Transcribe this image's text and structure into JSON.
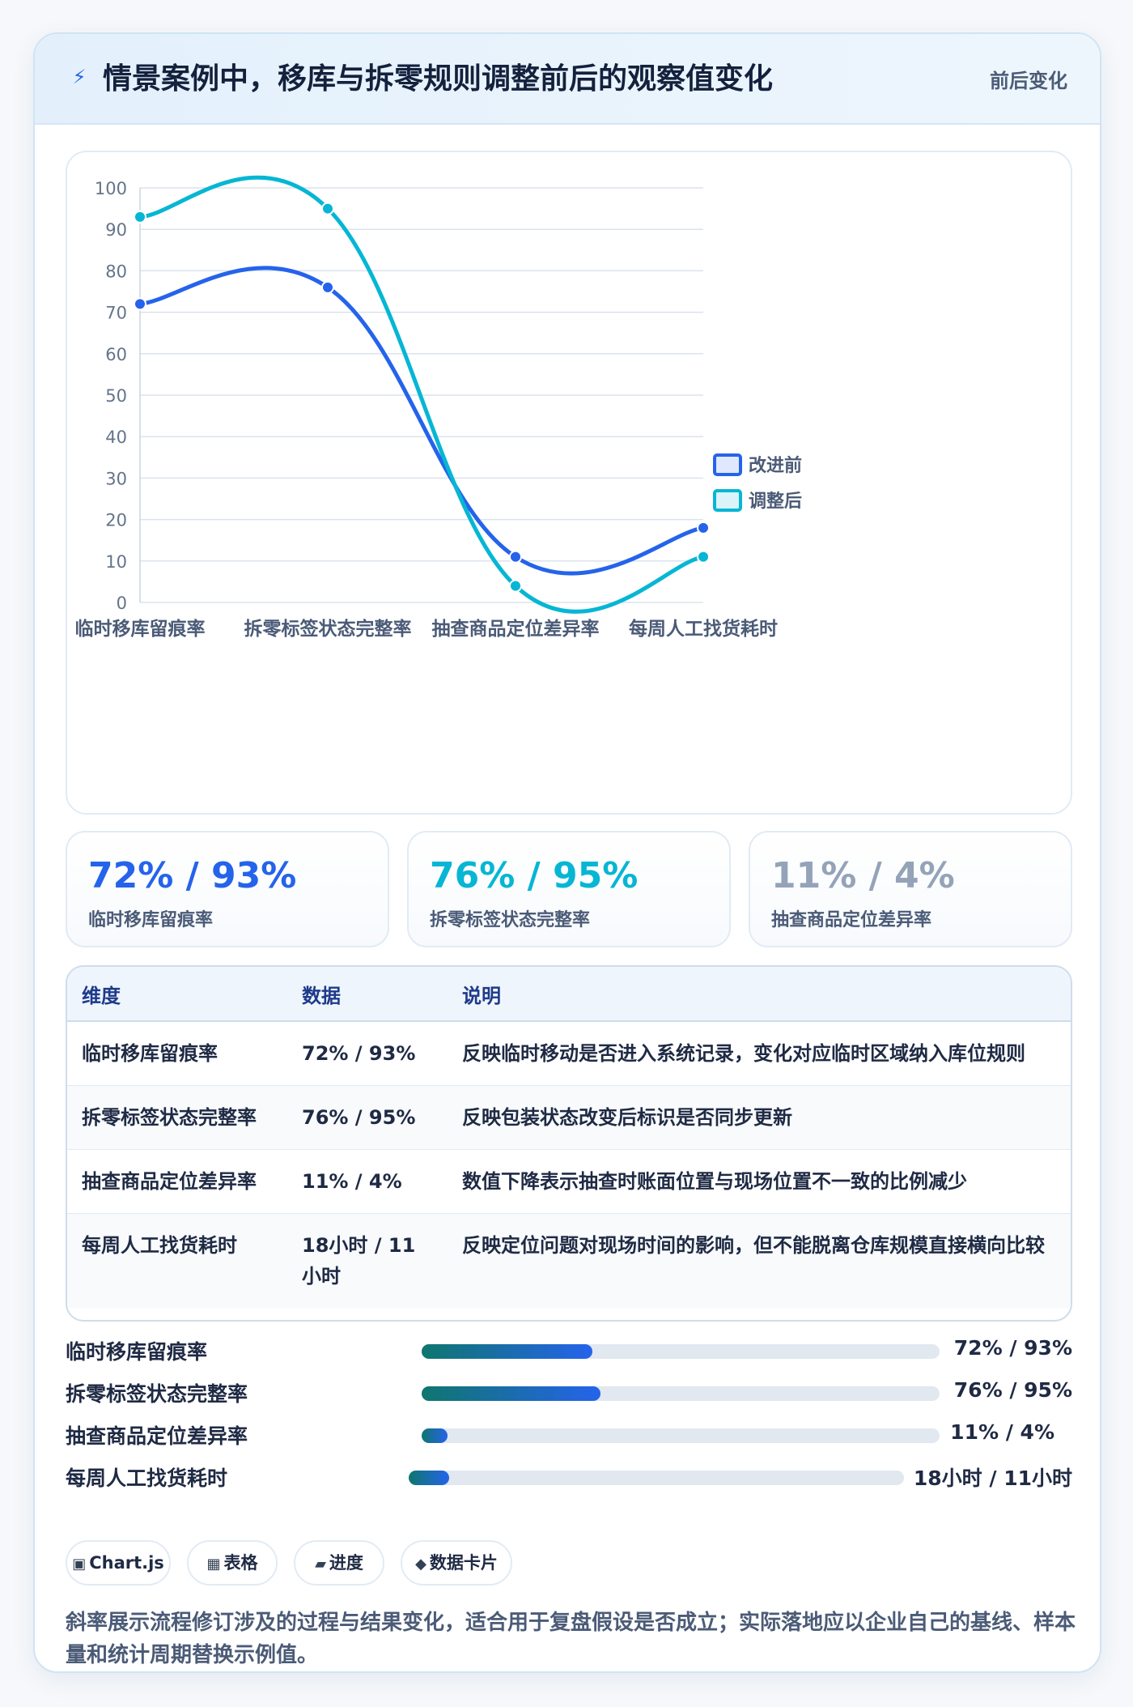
{
  "header": {
    "title": "情景案例中，移库与拆零规则调整前后的观察值变化",
    "tag": "前后变化"
  },
  "chart_data": {
    "type": "line",
    "categories": [
      "临时移库留痕率",
      "拆零标签状态完整率",
      "抽查商品定位差异率",
      "每周人工找货耗时"
    ],
    "series": [
      {
        "name": "改进前",
        "values": [
          72,
          76,
          11,
          18
        ],
        "color": "#2563eb"
      },
      {
        "name": "调整后",
        "values": [
          93,
          95,
          4,
          11
        ],
        "color": "#06b6d4"
      }
    ],
    "ylim": [
      0,
      100
    ],
    "yticks": [
      0,
      10,
      20,
      30,
      40,
      50,
      60,
      70,
      80,
      90,
      100
    ],
    "grid": true,
    "legend": "right",
    "smooth": true
  },
  "stats": [
    {
      "value": "72% / 93%",
      "label": "临时移库留痕率",
      "color": "#2563eb"
    },
    {
      "value": "76% / 95%",
      "label": "拆零标签状态完整率",
      "color": "#06b6d4"
    },
    {
      "value": "11% / 4%",
      "label": "抽查商品定位差异率",
      "color": "#94a3b8"
    }
  ],
  "table": {
    "headers": [
      "维度",
      "数据",
      "说明"
    ],
    "rows": [
      [
        "临时移库留痕率",
        "72% / 93%",
        "反映临时移动是否进入系统记录，变化对应临时区域纳入库位规则"
      ],
      [
        "拆零标签状态完整率",
        "76% / 95%",
        "反映包装状态改变后标识是否同步更新"
      ],
      [
        "抽查商品定位差异率",
        "11% / 4%",
        "数值下降表示抽查时账面位置与现场位置不一致的比例减少"
      ],
      [
        "每周人工找货耗时",
        "18小时 / 11小时",
        "反映定位问题对现场时间的影响，但不能脱离仓库规模直接横向比较"
      ]
    ]
  },
  "progress": [
    {
      "label": "临时移库留痕率",
      "value": "72% / 93%",
      "fill": 0.33
    },
    {
      "label": "拆零标签状态完整率",
      "value": "76% / 95%",
      "fill": 0.345
    },
    {
      "label": "抽查商品定位差异率",
      "value": "11% / 4%",
      "fill": 0.05
    },
    {
      "label": "每周人工找货耗时",
      "value": "18小时 / 11小时",
      "fill": 0.082
    }
  ],
  "chips": [
    {
      "icon": "▣",
      "label": "Chart.js"
    },
    {
      "icon": "▦",
      "label": "表格"
    },
    {
      "icon": "▰",
      "label": "进度"
    },
    {
      "icon": "◆",
      "label": "数据卡片"
    }
  ],
  "footnote": "斜率展示流程修订涉及的过程与结果变化，适合用于复盘假设是否成立；实际落地应以企业自己的基线、样本量和统计周期替换示例值。"
}
